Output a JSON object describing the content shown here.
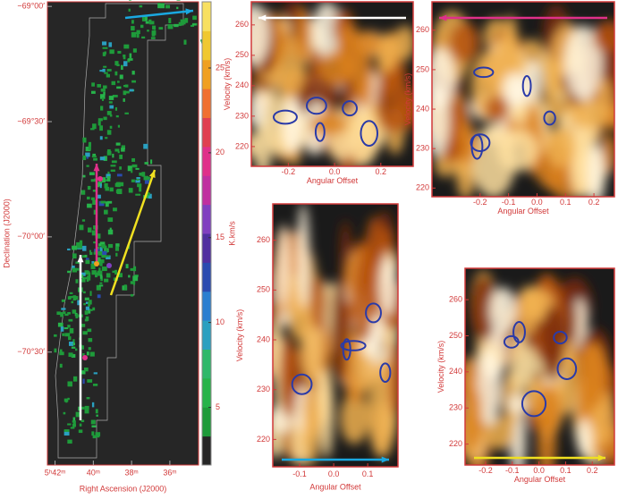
{
  "chart_data": [
    {
      "type": "map",
      "xlabel": "Right Ascension (J2000)",
      "ylabel": "Declination (J2000)",
      "xlim": [
        42.4,
        34.5
      ],
      "ylim": [
        -70.99,
        -68.98
      ],
      "xticks": [
        {
          "value": 42,
          "label": "5ʰ42ᵐ"
        },
        {
          "value": 40,
          "label": "40ᵐ"
        },
        {
          "value": 38,
          "label": "38ᵐ"
        },
        {
          "value": 36,
          "label": "36ᵐ"
        }
      ],
      "yticks": [
        {
          "value": -69.0,
          "label": "−69°00′"
        },
        {
          "value": -69.5,
          "label": "−69°30′"
        },
        {
          "value": -70.0,
          "label": "−70°00′"
        },
        {
          "value": -70.5,
          "label": "−70°30′"
        }
      ]
    },
    {
      "type": "colorbar",
      "ylabel": "K.km/s",
      "ylim": [
        1.6,
        28.9
      ],
      "yticks": [
        5,
        10,
        15,
        20,
        25
      ]
    },
    {
      "type": "pv",
      "xlabel": "Angular Offset",
      "ylabel": "Velocity (km/s)",
      "arrow": "#ffffff",
      "arrow_dir": "left",
      "arrow_pos": "top",
      "xlim": [
        -0.36,
        0.34
      ],
      "ylim": [
        213.5,
        267.6
      ],
      "xticks": [
        -0.2,
        {
          "value": 0,
          "label": "0.0"
        },
        0.2
      ],
      "yticks": [
        220,
        230,
        240,
        250,
        260
      ]
    },
    {
      "type": "pv",
      "xlabel": "Angular Offset",
      "ylabel": "Velocity (km/s)",
      "arrow": "#e0308a",
      "arrow_dir": "left",
      "arrow_pos": "top",
      "xlim": [
        -0.369,
        0.272
      ],
      "ylim": [
        217.8,
        267.2
      ],
      "xticks": [
        -0.2,
        -0.1,
        {
          "value": 0,
          "label": "0.0"
        },
        0.1,
        0.2
      ],
      "yticks": [
        220,
        230,
        240,
        250,
        260
      ]
    },
    {
      "type": "pv",
      "xlabel": "Angular Offset",
      "ylabel": "Velocity  (km/s)",
      "arrow": "#1aa8e0",
      "arrow_dir": "right",
      "arrow_pos": "bottom",
      "xlim": [
        -0.179,
        0.189
      ],
      "ylim": [
        214.5,
        267.3
      ],
      "xticks": [
        -0.1,
        {
          "value": 0,
          "label": "0.0"
        },
        0.1
      ],
      "yticks": [
        220,
        230,
        240,
        250,
        260
      ]
    },
    {
      "type": "pv",
      "xlabel": "Angular Offset",
      "ylabel": "Velocity (km/s)",
      "arrow": "#f0e020",
      "arrow_dir": "right",
      "arrow_pos": "bottom",
      "xlim": [
        -0.277,
        0.283
      ],
      "ylim": [
        214.2,
        268.7
      ],
      "xticks": [
        -0.2,
        -0.1,
        {
          "value": 0,
          "label": "0.0"
        },
        0.1,
        0.2
      ],
      "yticks": [
        220,
        230,
        240,
        250,
        260
      ]
    }
  ]
}
